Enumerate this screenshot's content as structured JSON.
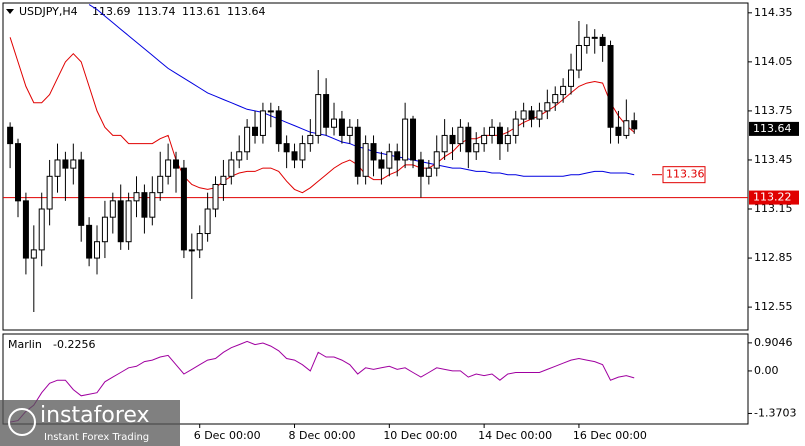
{
  "chart_data": {
    "type": "candlestick",
    "symbol": "USDJPY,H4",
    "x": [
      0,
      1,
      2,
      3,
      4,
      5,
      6,
      7,
      8,
      9,
      10,
      11,
      12,
      13,
      14,
      15,
      16,
      17,
      18,
      19,
      20,
      21,
      22,
      23,
      24,
      25,
      26,
      27,
      28,
      29,
      30,
      31,
      32,
      33,
      34,
      35,
      36,
      37,
      38,
      39,
      40,
      41,
      42,
      43,
      44,
      45,
      46,
      47,
      48,
      49,
      50,
      51,
      52,
      53,
      54,
      55,
      56,
      57,
      58,
      59,
      60,
      61,
      62,
      63,
      64,
      65,
      66,
      67,
      68,
      69,
      70,
      71,
      72,
      73,
      74,
      75,
      76,
      77,
      78,
      79
    ],
    "open": [
      113.65,
      113.55,
      113.2,
      112.85,
      112.9,
      113.15,
      113.35,
      113.45,
      113.4,
      113.45,
      113.05,
      112.85,
      112.95,
      113.1,
      113.2,
      112.95,
      113.2,
      113.25,
      113.1,
      113.25,
      113.35,
      113.45,
      113.4,
      112.9,
      112.9,
      113.0,
      113.15,
      113.3,
      113.35,
      113.45,
      113.5,
      113.65,
      113.6,
      113.75,
      113.75,
      113.55,
      113.5,
      113.45,
      113.55,
      113.6,
      113.85,
      113.65,
      113.7,
      113.6,
      113.65,
      113.35,
      113.55,
      113.45,
      113.4,
      113.5,
      113.45,
      113.7,
      113.45,
      113.35,
      113.4,
      113.5,
      113.6,
      113.55,
      113.65,
      113.5,
      113.55,
      113.6,
      113.65,
      113.55,
      113.6,
      113.7,
      113.75,
      113.7,
      113.75,
      113.8,
      113.85,
      113.9,
      114.0,
      114.15,
      114.2,
      114.2,
      114.15,
      113.65,
      113.6,
      113.69
    ],
    "high": [
      113.68,
      113.58,
      113.25,
      113.05,
      113.25,
      113.45,
      113.55,
      113.5,
      113.55,
      113.5,
      113.1,
      113.05,
      113.2,
      113.25,
      113.3,
      113.25,
      113.35,
      113.3,
      113.35,
      113.5,
      113.55,
      113.5,
      113.45,
      113.0,
      113.05,
      113.25,
      113.35,
      113.45,
      113.5,
      113.6,
      113.7,
      113.75,
      113.8,
      113.8,
      113.78,
      113.6,
      113.55,
      113.6,
      113.7,
      114.0,
      113.95,
      113.8,
      113.75,
      113.7,
      113.7,
      113.6,
      113.6,
      113.5,
      113.55,
      113.55,
      113.8,
      113.72,
      113.5,
      113.45,
      113.6,
      113.7,
      113.65,
      113.7,
      113.68,
      113.62,
      113.65,
      113.7,
      113.68,
      113.65,
      113.75,
      113.8,
      113.78,
      113.8,
      113.88,
      113.9,
      113.95,
      114.1,
      114.3,
      114.28,
      114.25,
      114.22,
      114.18,
      113.75,
      113.82,
      113.74
    ],
    "low": [
      113.4,
      113.1,
      112.75,
      112.52,
      112.8,
      113.05,
      113.25,
      113.2,
      113.3,
      112.95,
      112.8,
      112.75,
      112.85,
      113.0,
      112.9,
      112.9,
      113.1,
      113.0,
      113.05,
      113.2,
      113.3,
      113.25,
      112.85,
      112.6,
      112.85,
      112.95,
      113.1,
      113.2,
      113.3,
      113.4,
      113.45,
      113.55,
      113.55,
      113.65,
      113.5,
      113.4,
      113.4,
      113.4,
      113.5,
      113.55,
      113.6,
      113.6,
      113.55,
      113.55,
      113.3,
      113.3,
      113.35,
      113.3,
      113.35,
      113.35,
      113.4,
      113.4,
      113.22,
      113.3,
      113.35,
      113.45,
      113.45,
      113.5,
      113.4,
      113.45,
      113.5,
      113.55,
      113.45,
      113.5,
      113.55,
      113.65,
      113.65,
      113.65,
      113.7,
      113.75,
      113.8,
      113.85,
      113.95,
      114.1,
      114.1,
      114.05,
      113.55,
      113.55,
      113.58,
      113.61
    ],
    "close": [
      113.55,
      113.2,
      112.85,
      112.9,
      113.15,
      113.35,
      113.45,
      113.4,
      113.45,
      113.05,
      112.85,
      112.95,
      113.1,
      113.2,
      112.95,
      113.2,
      113.25,
      113.1,
      113.25,
      113.35,
      113.45,
      113.4,
      112.9,
      112.9,
      113.0,
      113.15,
      113.3,
      113.35,
      113.45,
      113.5,
      113.65,
      113.6,
      113.75,
      113.75,
      113.55,
      113.5,
      113.45,
      113.55,
      113.6,
      113.85,
      113.65,
      113.7,
      113.6,
      113.65,
      113.35,
      113.55,
      113.45,
      113.4,
      113.5,
      113.45,
      113.7,
      113.45,
      113.35,
      113.4,
      113.5,
      113.6,
      113.55,
      113.65,
      113.5,
      113.55,
      113.6,
      113.65,
      113.55,
      113.6,
      113.7,
      113.75,
      113.7,
      113.75,
      113.8,
      113.85,
      113.9,
      114.0,
      114.15,
      114.2,
      114.2,
      114.15,
      113.65,
      113.6,
      113.69,
      113.64
    ],
    "series": [
      {
        "color": "#e00000",
        "values": [
          114.2,
          114.05,
          113.9,
          113.8,
          113.8,
          113.85,
          113.95,
          114.05,
          114.1,
          114.05,
          113.9,
          113.75,
          113.65,
          113.6,
          113.6,
          113.55,
          113.55,
          113.55,
          113.55,
          113.58,
          113.6,
          113.45,
          113.35,
          113.3,
          113.28,
          113.27,
          113.28,
          113.32,
          113.35,
          113.37,
          113.38,
          113.38,
          113.4,
          113.4,
          113.38,
          113.32,
          113.27,
          113.25,
          113.28,
          113.32,
          113.36,
          113.4,
          113.43,
          113.45,
          113.42,
          113.36,
          113.33,
          113.33,
          113.36,
          113.38,
          113.42,
          113.42,
          113.4,
          113.4,
          113.43,
          113.47,
          113.5,
          113.55,
          113.58,
          113.58,
          113.6,
          113.6,
          113.6,
          113.62,
          113.65,
          113.68,
          113.7,
          113.72,
          113.75,
          113.78,
          113.82,
          113.86,
          113.9,
          113.92,
          113.93,
          113.92,
          113.8,
          113.72,
          113.66,
          113.62
        ]
      },
      {
        "color": "#0000e0",
        "values": [
          null,
          null,
          null,
          null,
          null,
          null,
          null,
          null,
          null,
          null,
          114.4,
          114.37,
          114.33,
          114.29,
          114.25,
          114.21,
          114.17,
          114.13,
          114.09,
          114.05,
          114.01,
          113.98,
          113.95,
          113.92,
          113.89,
          113.86,
          113.84,
          113.82,
          113.8,
          113.78,
          113.76,
          113.75,
          113.74,
          113.72,
          113.7,
          113.68,
          113.66,
          113.64,
          113.62,
          113.61,
          113.6,
          113.58,
          113.56,
          113.55,
          113.53,
          113.52,
          113.5,
          113.49,
          113.48,
          113.47,
          113.46,
          113.45,
          113.44,
          113.43,
          113.42,
          113.41,
          113.4,
          113.4,
          113.39,
          113.38,
          113.38,
          113.37,
          113.37,
          113.36,
          113.36,
          113.35,
          113.35,
          113.35,
          113.35,
          113.35,
          113.35,
          113.36,
          113.36,
          113.37,
          113.38,
          113.38,
          113.37,
          113.37,
          113.37,
          113.36
        ]
      }
    ],
    "xlim": [
      -0.9,
      93.4
    ],
    "ylim": [
      112.41,
      114.41
    ],
    "yticks": [
      114.35,
      114.05,
      113.75,
      113.45,
      113.15,
      112.85,
      112.55
    ],
    "xticks": [
      {
        "value": 24,
        "label": "6 Dec 00:00"
      },
      {
        "value": 36,
        "label": "8 Dec 00:00"
      },
      {
        "value": 48,
        "label": "10 Dec 00:00"
      },
      {
        "value": 60,
        "label": "14 Dec 00:00"
      },
      {
        "value": 72,
        "label": "16 Dec 00:00"
      }
    ],
    "hline": 113.22,
    "hline_color": "#e00000",
    "price_label": 113.36,
    "indicator": {
      "name": "Marlin",
      "color": "#a000a0",
      "values": [
        -1.65,
        -1.6,
        -1.3,
        -1.1,
        -0.7,
        -0.4,
        -0.3,
        -0.3,
        -0.6,
        -0.8,
        -0.75,
        -0.7,
        -0.35,
        -0.2,
        -0.05,
        0.1,
        0.15,
        0.3,
        0.35,
        0.45,
        0.5,
        0.2,
        -0.1,
        0.05,
        0.2,
        0.35,
        0.4,
        0.6,
        0.75,
        0.85,
        0.95,
        0.85,
        0.9,
        0.8,
        0.65,
        0.4,
        0.35,
        0.2,
        0.0,
        0.6,
        0.45,
        0.45,
        0.35,
        0.2,
        -0.1,
        0.1,
        0.05,
        0.1,
        0.15,
        0.05,
        0.1,
        -0.05,
        -0.2,
        -0.05,
        0.1,
        0.05,
        0.0,
        0.0,
        -0.2,
        -0.1,
        -0.15,
        -0.1,
        -0.3,
        -0.1,
        -0.05,
        -0.05,
        -0.05,
        -0.05,
        0.05,
        0.15,
        0.25,
        0.35,
        0.4,
        0.35,
        0.3,
        0.2,
        -0.3,
        -0.2,
        -0.15,
        -0.2256
      ],
      "ylim": [
        -1.71,
        1.19
      ],
      "yticks": [
        0.9046,
        {
          "value": 0,
          "label": "0.00"
        },
        -1.3703
      ]
    },
    "watermark": {
      "brand": "instaforex",
      "tagline": "Instant Forex Trading"
    }
  }
}
